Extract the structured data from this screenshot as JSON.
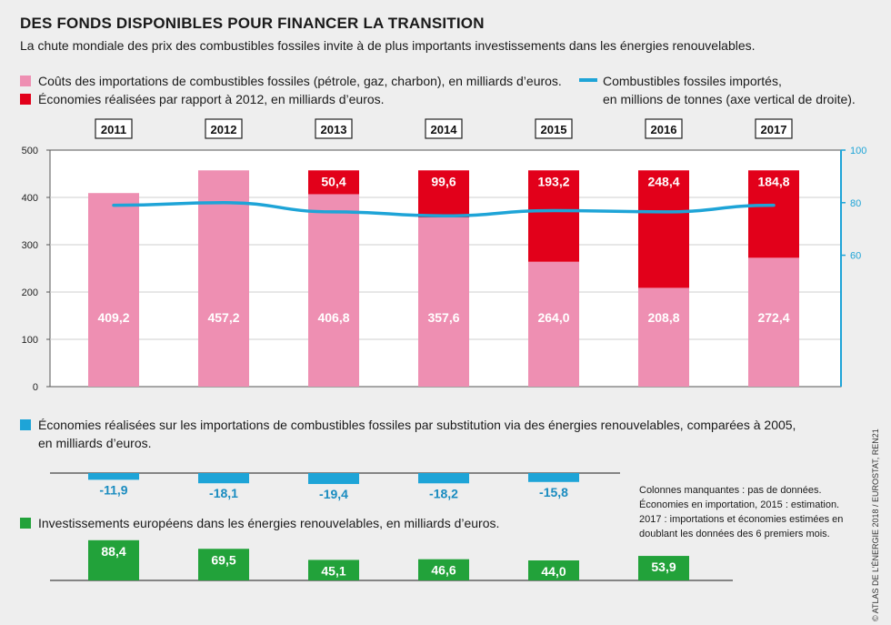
{
  "title": "DES FONDS DISPONIBLES POUR FINANCER LA TRANSITION",
  "subtitle": "La chute mondiale des prix des combustibles fossiles invite à de plus importants investissements dans les énergies renouvelables.",
  "legend": {
    "costs": "Coûts des importations de combustibles fossiles (pétrole, gaz, charbon), en milliards d’euros.",
    "savings": "Économies réalisées par rapport à 2012, en milliards d’euros.",
    "line_1": "Combustibles fossiles importés,",
    "line_2": "en millions de tonnes (axe vertical de droite)."
  },
  "section_substitution": {
    "line_1": "Économies réalisées sur les importations de combustibles fossiles par substitution via des énergies renouvelables, comparées à 2005,",
    "line_2": "en milliards d’euros."
  },
  "section_investment": "Investissements européens dans les énergies renouvelables, en milliards d’euros.",
  "notes": [
    "Colonnes manquantes : pas de données.",
    "Économies en importation, 2015 : estimation.",
    "2017 : importations et économies estimées en",
    "doublant les données des 6 premiers mois."
  ],
  "copyright": "© ATLAS DE L’ÉNERGIE 2018 / EUROSTAT, REN21",
  "colors": {
    "pink": "#ee8fb2",
    "red": "#e2001a",
    "blue": "#1ea4d7",
    "green": "#22a23a"
  },
  "chart_data": [
    {
      "type": "bar",
      "categories": [
        "2011",
        "2012",
        "2013",
        "2014",
        "2015",
        "2016",
        "2017"
      ],
      "series": [
        {
          "name": "Coûts des importations de combustibles fossiles (pétrole, gaz, charbon), en milliards d’euros.",
          "values": [
            409.2,
            457.2,
            406.8,
            357.6,
            264.0,
            208.8,
            272.4
          ],
          "labels": [
            "409,2",
            "457,2",
            "406,8",
            "357,6",
            "264,0",
            "208,8",
            "272,4"
          ]
        },
        {
          "name": "Économies réalisées par rapport à 2012, en milliards d’euros.",
          "values": [
            null,
            null,
            50.4,
            99.6,
            193.2,
            248.4,
            184.8
          ],
          "labels": [
            "",
            "",
            "50,4",
            "99,6",
            "193,2",
            "248,4",
            "184,8"
          ]
        }
      ],
      "yticks": [
        "0",
        "100",
        "200",
        "300",
        "400",
        "500"
      ],
      "ylim": [
        0,
        500
      ],
      "stacked": true
    },
    {
      "type": "line",
      "name": "Combustibles fossiles importés, en millions de tonnes (axe vertical de droite).",
      "x": [
        "2011",
        "2012",
        "2013",
        "2014",
        "2015",
        "2016",
        "2017"
      ],
      "values": [
        79,
        80,
        76.5,
        75,
        77,
        76.5,
        79
      ],
      "axis": "right",
      "yticks": [
        "60",
        "80",
        "100"
      ],
      "ylim": [
        10,
        100
      ]
    },
    {
      "type": "bar",
      "name": "Économies réalisées sur les importations de combustibles fossiles par substitution via des énergies renouvelables, comparées à 2005, en milliards d’euros.",
      "categories": [
        "2011",
        "2012",
        "2013",
        "2014",
        "2015"
      ],
      "values": [
        -11.9,
        -18.1,
        -19.4,
        -18.2,
        -15.8
      ],
      "labels": [
        "-11,9",
        "-18,1",
        "-19,4",
        "-18,2",
        "-15,8"
      ]
    },
    {
      "type": "bar",
      "name": "Investissements européens dans les énergies renouvelables, en milliards d’euros.",
      "categories": [
        "2011",
        "2012",
        "2013",
        "2014",
        "2015",
        "2016"
      ],
      "values": [
        88.4,
        69.5,
        45.1,
        46.6,
        44.0,
        53.9
      ],
      "labels": [
        "88,4",
        "69,5",
        "45,1",
        "46,6",
        "44,0",
        "53,9"
      ]
    }
  ]
}
